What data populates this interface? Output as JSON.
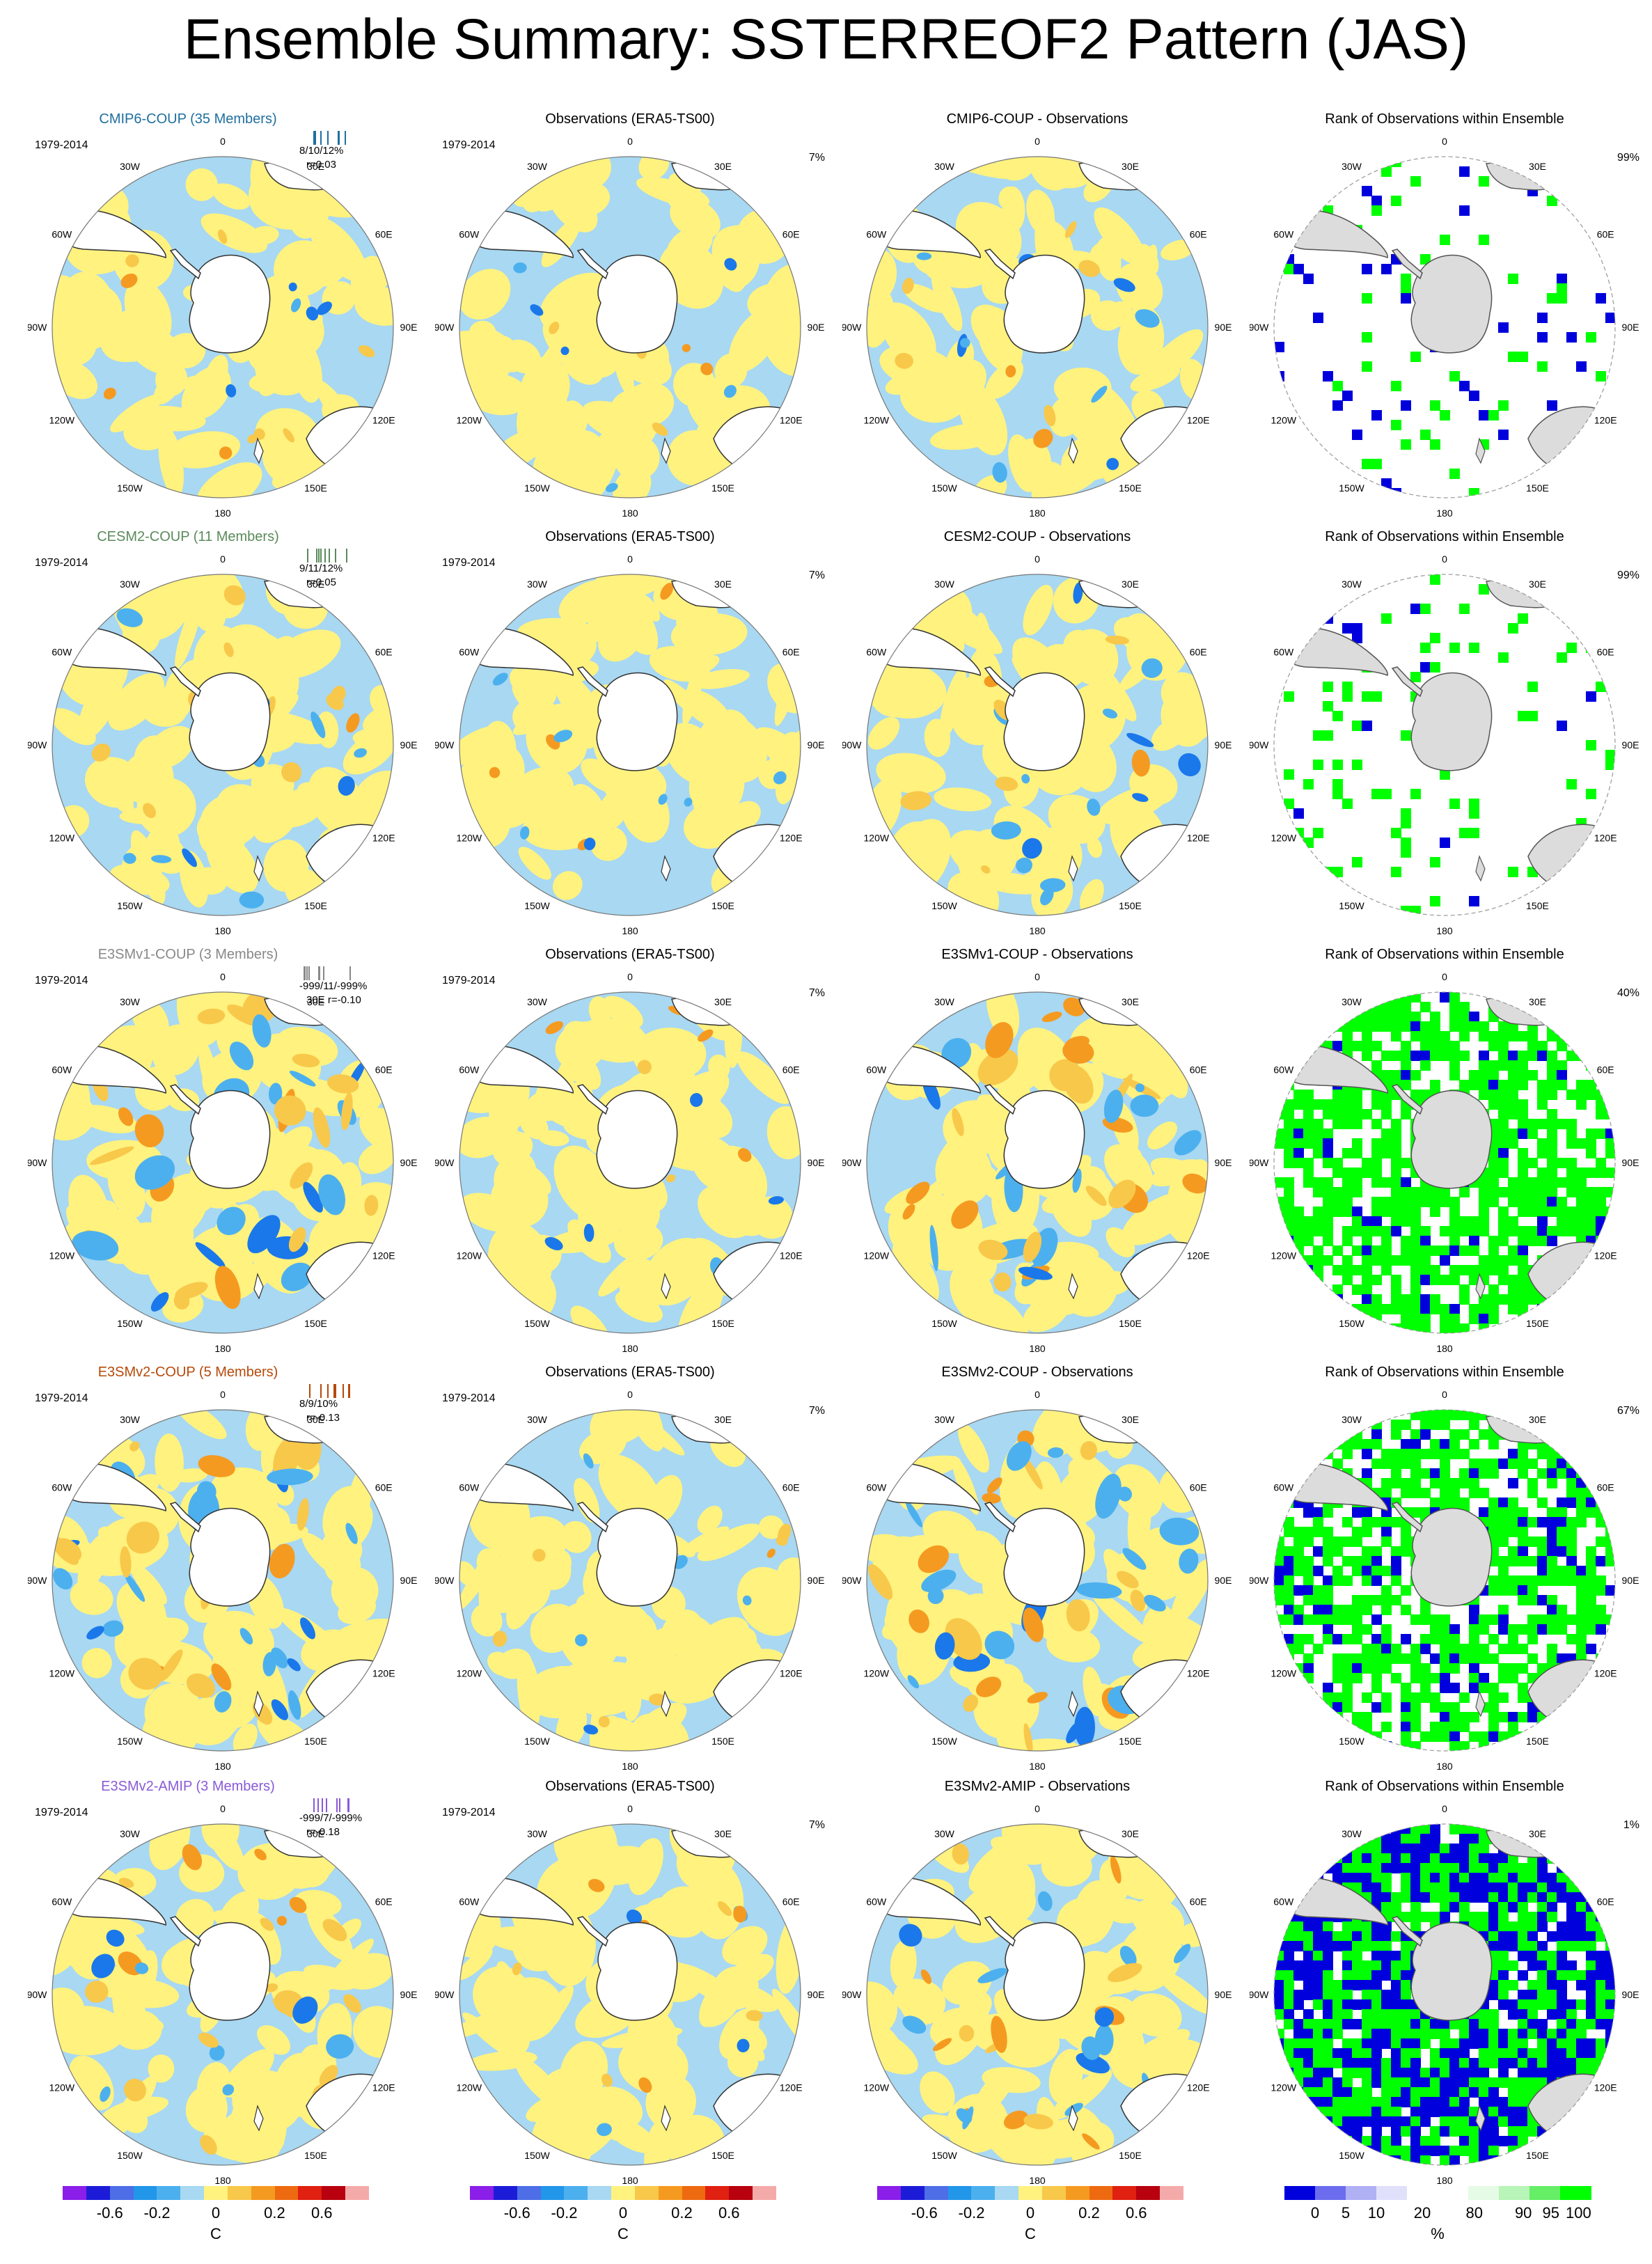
{
  "title": "Ensemble Summary: SSTERREOF2 Pattern (JAS)",
  "colors": {
    "pos_light": "#fff27f",
    "pos_mid": "#f8c84a",
    "pos_strong": "#f59a20",
    "pos_max": "#e05a10",
    "neg_light": "#a8d8f2",
    "neg_mid": "#4cb0ee",
    "neg_strong": "#1a78ea",
    "land": "#ffffff",
    "land_rank": "#dcdcdc",
    "rank_low": "#0000dd",
    "rank_high": "#00ff00"
  },
  "rows": [
    {
      "model": "CMIP6-COUP (35 Members)",
      "model_color": "#1f6f9f",
      "short": "CMIP6-COUP",
      "stat1": "8/10/12%",
      "stat2": "r=0.03",
      "period": "1979-2014",
      "diff_title": "CMIP6-COUP - Observations",
      "obs_pct": "7%",
      "rank_pct": "99%",
      "rank_fill": 0.05,
      "blue_fill": 0.03,
      "model_amp": 0.35,
      "diff_amp": 0.45
    },
    {
      "model": "CESM2-COUP (11 Members)",
      "model_color": "#5a8a5a",
      "short": "CESM2-COUP",
      "stat1": "9/11/12%",
      "stat2": "r=0.05",
      "period": "1979-2014",
      "diff_title": "CESM2-COUP - Observations",
      "obs_pct": "7%",
      "rank_pct": "99%",
      "rank_fill": 0.08,
      "blue_fill": 0.02,
      "model_amp": 0.55,
      "diff_amp": 0.6
    },
    {
      "model": "E3SMv1-COUP (3 Members)",
      "model_color": "#888888",
      "short": "E3SMv1-COUP",
      "stat1": "-999/11/-999%",
      "stat2": "30E r=-0.10",
      "period": "1979-2014",
      "diff_title": "E3SMv1-COUP - Observations",
      "obs_pct": "7%",
      "rank_pct": "40%",
      "rank_fill": 0.62,
      "blue_fill": 0.06,
      "model_amp": 1.0,
      "diff_amp": 1.0
    },
    {
      "model": "E3SMv2-COUP (5 Members)",
      "model_color": "#b54a0a",
      "short": "E3SMv2-COUP",
      "stat1": "8/9/10%",
      "stat2": "r=-0.13",
      "period": "1979-2014",
      "diff_title": "E3SMv2-COUP - Observations",
      "obs_pct": "7%",
      "rank_pct": "67%",
      "rank_fill": 0.55,
      "blue_fill": 0.12,
      "model_amp": 1.0,
      "diff_amp": 1.0
    },
    {
      "model": "E3SMv2-AMIP (3 Members)",
      "model_color": "#8a5ad8",
      "short": "E3SMv2-AMIP",
      "stat1": "-999/7/-999%",
      "stat2": "r=-0.18",
      "period": "1979-2014",
      "diff_title": "E3SMv2-AMIP - Observations",
      "obs_pct": "7%",
      "rank_pct": "1%",
      "rank_fill": 0.45,
      "blue_fill": 0.45,
      "model_amp": 0.7,
      "diff_amp": 0.75
    }
  ],
  "obs_title": "Observations (ERA5-TS00)",
  "rank_title": "Rank of Observations within Ensemble",
  "lon_labels": [
    "0",
    "30E",
    "60E",
    "90E",
    "120E",
    "150E",
    "180",
    "150W",
    "120W",
    "90W",
    "60W",
    "30W"
  ],
  "colorbar_sst": {
    "colors": [
      "#8b1ee8",
      "#1c1cd8",
      "#4d6ee6",
      "#2296e8",
      "#4cb0ee",
      "#a8d8f2",
      "#fff27f",
      "#f8c84a",
      "#f59a20",
      "#ee6a10",
      "#e02010",
      "#b8000e",
      "#f5aaaa"
    ],
    "ticks": [
      "-0.6",
      "-0.2",
      "0",
      "0.2",
      "0.6"
    ],
    "unit": "C"
  },
  "colorbar_rank": {
    "colors": [
      "#0000dd",
      "#6c6cee",
      "#b0b0f5",
      "#e0e0fa",
      "#ffffff",
      "#ffffff",
      "#e6fbe6",
      "#b8f5b8",
      "#66ee66",
      "#00ff00"
    ],
    "ticks": [
      "0",
      "5",
      "10",
      "20",
      "80",
      "90",
      "95",
      "100"
    ],
    "unit": "%"
  }
}
